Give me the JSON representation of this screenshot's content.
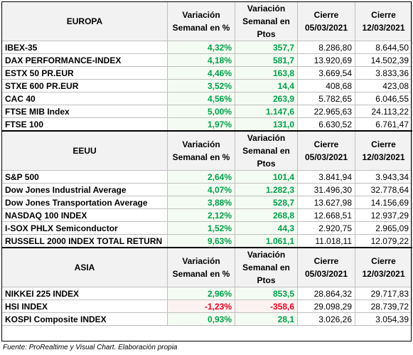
{
  "sections": [
    {
      "region": "EUROPA",
      "col_pct": "Variación Semanal en %",
      "col_pts": "Variación Semanal en Ptos",
      "col_d1": "Cierre 05/03/2021",
      "col_d2": "Cierre 12/03/2021",
      "rows": [
        {
          "name": "IBEX-35",
          "pct": "4,32%",
          "pts": "357,7",
          "d1": "8.286,80",
          "d2": "8.644,50",
          "sign": "pos"
        },
        {
          "name": "DAX PERFORMANCE-INDEX",
          "pct": "4,18%",
          "pts": "581,7",
          "d1": "13.920,69",
          "d2": "14.502,39",
          "sign": "pos"
        },
        {
          "name": "ESTX 50 PR.EUR",
          "pct": "4,46%",
          "pts": "163,8",
          "d1": "3.669,54",
          "d2": "3.833,36",
          "sign": "pos"
        },
        {
          "name": "STXE 600 PR.EUR",
          "pct": "3,52%",
          "pts": "14,4",
          "d1": "408,68",
          "d2": "423,08",
          "sign": "pos"
        },
        {
          "name": "CAC 40",
          "pct": "4,56%",
          "pts": "263,9",
          "d1": "5.782,65",
          "d2": "6.046,55",
          "sign": "pos"
        },
        {
          "name": "FTSE MIB Index",
          "pct": "5,00%",
          "pts": "1.147,6",
          "d1": "22.965,63",
          "d2": "24.113,22",
          "sign": "pos"
        },
        {
          "name": "FTSE 100",
          "pct": "1,97%",
          "pts": "131,0",
          "d1": "6.630,52",
          "d2": "6.761,47",
          "sign": "pos"
        }
      ]
    },
    {
      "region": "EEUU",
      "col_pct": "Variación Semanal en %",
      "col_pts": "Variación Semanal en Ptos",
      "col_d1": "Cierre 05/03/2021",
      "col_d2": "Cierre 12/03/2021",
      "rows": [
        {
          "name": "S&P 500",
          "pct": "2,64%",
          "pts": "101,4",
          "d1": "3.841,94",
          "d2": "3.943,34",
          "sign": "pos"
        },
        {
          "name": "Dow Jones Industrial Average",
          "pct": "4,07%",
          "pts": "1.282,3",
          "d1": "31.496,30",
          "d2": "32.778,64",
          "sign": "pos"
        },
        {
          "name": "Dow Jones Transportation Average",
          "pct": "3,88%",
          "pts": "528,7",
          "d1": "13.627,98",
          "d2": "14.156,69",
          "sign": "pos"
        },
        {
          "name": "NASDAQ 100 INDEX",
          "pct": "2,12%",
          "pts": "268,8",
          "d1": "12.668,51",
          "d2": "12.937,29",
          "sign": "pos"
        },
        {
          "name": "I-SOX  PHLX Semiconductor",
          "pct": "1,52%",
          "pts": "44,3",
          "d1": "2.920,75",
          "d2": "2.965,09",
          "sign": "pos"
        },
        {
          "name": "RUSSELL 2000 INDEX TOTAL RETURN",
          "pct": "9,63%",
          "pts": "1.061,1",
          "d1": "11.018,11",
          "d2": "12.079,22",
          "sign": "pos"
        }
      ]
    },
    {
      "region": "ASIA",
      "col_pct": "Variación Semanal en %",
      "col_pts": "Variación Semanal en Ptos",
      "col_d1": "Cierre 05/03/2021",
      "col_d2": "Cierre 12/03/2021",
      "rows": [
        {
          "name": "NIKKEI 225 INDEX",
          "pct": "2,96%",
          "pts": "853,5",
          "d1": "28.864,32",
          "d2": "29.717,83",
          "sign": "pos"
        },
        {
          "name": "HSI INDEX",
          "pct": "-1,23%",
          "pts": "-358,6",
          "d1": "29.098,29",
          "d2": "28.739,72",
          "sign": "neg"
        },
        {
          "name": "KOSPI Composite INDEX",
          "pct": "0,93%",
          "pts": "28,1",
          "d1": "3.026,26",
          "d2": "3.054,39",
          "sign": "pos"
        }
      ]
    }
  ],
  "colors": {
    "positive": "#00a04a",
    "negative": "#e8001c",
    "header_bg": "#f2f2f2"
  },
  "source": "Fuente: ProRealtime y Visual Chart. Elaboración propia"
}
